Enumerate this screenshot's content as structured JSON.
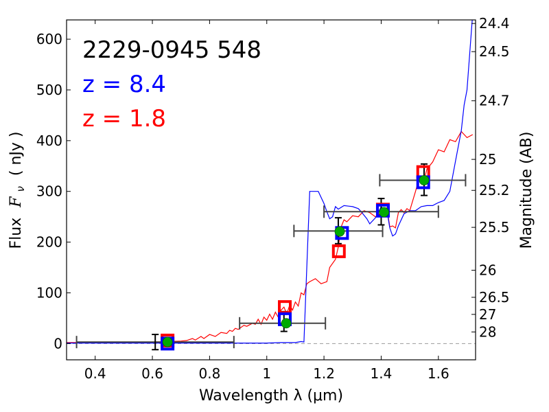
{
  "chart_data": {
    "type": "scatter",
    "title_lines": [
      {
        "text": "2229-0945 548",
        "color": "#000000"
      },
      {
        "text": "z = 8.4",
        "color": "#0000ff"
      },
      {
        "text": "z = 1.8",
        "color": "#ff0000"
      }
    ],
    "xlabel": "Wavelength  λ (μm)",
    "ylabel": "Flux  F_ν  ( nJy )",
    "ylabel_parts": {
      "flux": "Flux",
      "f": "F",
      "nu": "ν",
      "unit": "( nJy )"
    },
    "y2label": "Magnitude (AB)",
    "xlim": [
      0.3,
      1.73
    ],
    "ylim": [
      -32,
      638
    ],
    "xticks": [
      {
        "value": 0.4,
        "label": "0.4"
      },
      {
        "value": 0.6,
        "label": "0.6"
      },
      {
        "value": 0.8,
        "label": "0.8"
      },
      {
        "value": 1.0,
        "label": "1"
      },
      {
        "value": 1.2,
        "label": "1.2"
      },
      {
        "value": 1.4,
        "label": "1.4"
      },
      {
        "value": 1.6,
        "label": "1.6"
      }
    ],
    "yticks": [
      {
        "value": 0,
        "label": "0"
      },
      {
        "value": 100,
        "label": "100"
      },
      {
        "value": 200,
        "label": "200"
      },
      {
        "value": 300,
        "label": "300"
      },
      {
        "value": 400,
        "label": "400"
      },
      {
        "value": 500,
        "label": "500"
      },
      {
        "value": 600,
        "label": "600"
      }
    ],
    "y2ticks": [
      {
        "value": 24.4,
        "label": "24.4"
      },
      {
        "value": 24.5,
        "label": "24.5"
      },
      {
        "value": 24.7,
        "label": "24.7"
      },
      {
        "value": 25.0,
        "label": "25"
      },
      {
        "value": 25.2,
        "label": "25.2"
      },
      {
        "value": 25.5,
        "label": "25.5"
      },
      {
        "value": 26.0,
        "label": "26"
      },
      {
        "value": 26.5,
        "label": "26.5"
      },
      {
        "value": 27.0,
        "label": "27"
      },
      {
        "value": 28.0,
        "label": "28"
      }
    ],
    "zero_line": {
      "value": 0,
      "style": "dashed",
      "color": "#999999"
    },
    "series": [
      {
        "name": "z = 1.8 template",
        "kind": "line",
        "color": "#ff0000",
        "x": [
          0.3,
          0.4,
          0.5,
          0.6,
          0.66,
          0.7,
          0.72,
          0.74,
          0.75,
          0.77,
          0.78,
          0.8,
          0.82,
          0.84,
          0.86,
          0.87,
          0.88,
          0.89,
          0.9,
          0.92,
          0.93,
          0.95,
          0.96,
          0.97,
          0.98,
          0.99,
          1.0,
          1.01,
          1.02,
          1.03,
          1.04,
          1.05,
          1.06,
          1.07,
          1.08,
          1.09,
          1.1,
          1.11,
          1.12,
          1.13,
          1.14,
          1.15,
          1.17,
          1.19,
          1.21,
          1.22,
          1.24,
          1.25,
          1.26,
          1.27,
          1.28,
          1.3,
          1.32,
          1.34,
          1.36,
          1.38,
          1.4,
          1.42,
          1.43,
          1.44,
          1.45,
          1.46,
          1.47,
          1.48,
          1.49,
          1.5,
          1.52,
          1.53,
          1.55,
          1.56,
          1.58,
          1.6,
          1.62,
          1.64,
          1.66,
          1.68,
          1.7,
          1.72
        ],
        "y": [
          2,
          2,
          3,
          3,
          4,
          5,
          6,
          10,
          7,
          14,
          10,
          18,
          14,
          22,
          20,
          26,
          24,
          30,
          28,
          36,
          34,
          40,
          38,
          48,
          38,
          52,
          46,
          58,
          48,
          62,
          52,
          66,
          72,
          58,
          76,
          66,
          82,
          74,
          100,
          96,
          118,
          122,
          128,
          118,
          122,
          150,
          166,
          190,
          230,
          244,
          240,
          252,
          250,
          262,
          258,
          250,
          258,
          268,
          230,
          232,
          228,
          258,
          264,
          258,
          266,
          262,
          300,
          320,
          322,
          344,
          358,
          382,
          378,
          402,
          398,
          418,
          406,
          412
        ]
      },
      {
        "name": "z = 8.4 template",
        "kind": "line",
        "color": "#0000ff",
        "x": [
          0.3,
          0.4,
          0.5,
          0.6,
          0.7,
          0.8,
          0.9,
          0.95,
          1.0,
          1.05,
          1.1,
          1.12,
          1.13,
          1.15,
          1.17,
          1.18,
          1.2,
          1.21,
          1.22,
          1.23,
          1.24,
          1.25,
          1.27,
          1.3,
          1.32,
          1.33,
          1.35,
          1.36,
          1.38,
          1.4,
          1.41,
          1.42,
          1.43,
          1.44,
          1.45,
          1.46,
          1.48,
          1.5,
          1.52,
          1.54,
          1.56,
          1.58,
          1.6,
          1.62,
          1.64,
          1.66,
          1.68,
          1.69,
          1.7,
          1.72
        ],
        "y": [
          1,
          1,
          1,
          1,
          1,
          1,
          1,
          1,
          1,
          2,
          2,
          4,
          3,
          300,
          300,
          300,
          276,
          260,
          246,
          250,
          270,
          265,
          272,
          270,
          266,
          260,
          246,
          236,
          248,
          270,
          262,
          262,
          228,
          212,
          216,
          232,
          256,
          262,
          262,
          270,
          272,
          272,
          278,
          282,
          300,
          360,
          420,
          470,
          500,
          650
        ]
      }
    ],
    "error_bars": [
      {
        "x": 0.61,
        "xmin": 0.335,
        "xmax": 0.885,
        "y": 3,
        "ylo": -12,
        "yhi": 18
      },
      {
        "x": 1.06,
        "xmin": 0.905,
        "xmax": 1.205,
        "y": 40,
        "ylo": 24,
        "yhi": 63
      },
      {
        "x": 1.25,
        "xmin": 1.095,
        "xmax": 1.405,
        "y": 222,
        "ylo": 197,
        "yhi": 248
      },
      {
        "x": 1.4,
        "xmin": 1.2,
        "xmax": 1.6,
        "y": 260,
        "ylo": 234,
        "yhi": 286
      },
      {
        "x": 1.55,
        "xmin": 1.395,
        "xmax": 1.695,
        "y": 322,
        "ylo": 292,
        "yhi": 354
      }
    ],
    "model_points": [
      {
        "name": "z = 1.8 model",
        "color": "#ff0000",
        "points": [
          {
            "x": 0.653,
            "y": 6
          },
          {
            "x": 1.063,
            "y": 72
          },
          {
            "x": 1.252,
            "y": 182
          },
          {
            "x": 1.406,
            "y": 264
          },
          {
            "x": 1.547,
            "y": 338
          }
        ]
      },
      {
        "name": "z = 8.4 model",
        "color": "#0000ff",
        "points": [
          {
            "x": 0.653,
            "y": 0
          },
          {
            "x": 1.063,
            "y": 48
          },
          {
            "x": 1.263,
            "y": 218
          },
          {
            "x": 1.406,
            "y": 262
          },
          {
            "x": 1.547,
            "y": 318
          }
        ]
      }
    ],
    "observed_points": {
      "name": "Observed",
      "color": "#00aa00",
      "points": [
        {
          "x": 0.653,
          "y": 3
        },
        {
          "x": 1.068,
          "y": 40
        },
        {
          "x": 1.255,
          "y": 221
        },
        {
          "x": 1.41,
          "y": 259
        },
        {
          "x": 1.55,
          "y": 322
        }
      ]
    }
  }
}
